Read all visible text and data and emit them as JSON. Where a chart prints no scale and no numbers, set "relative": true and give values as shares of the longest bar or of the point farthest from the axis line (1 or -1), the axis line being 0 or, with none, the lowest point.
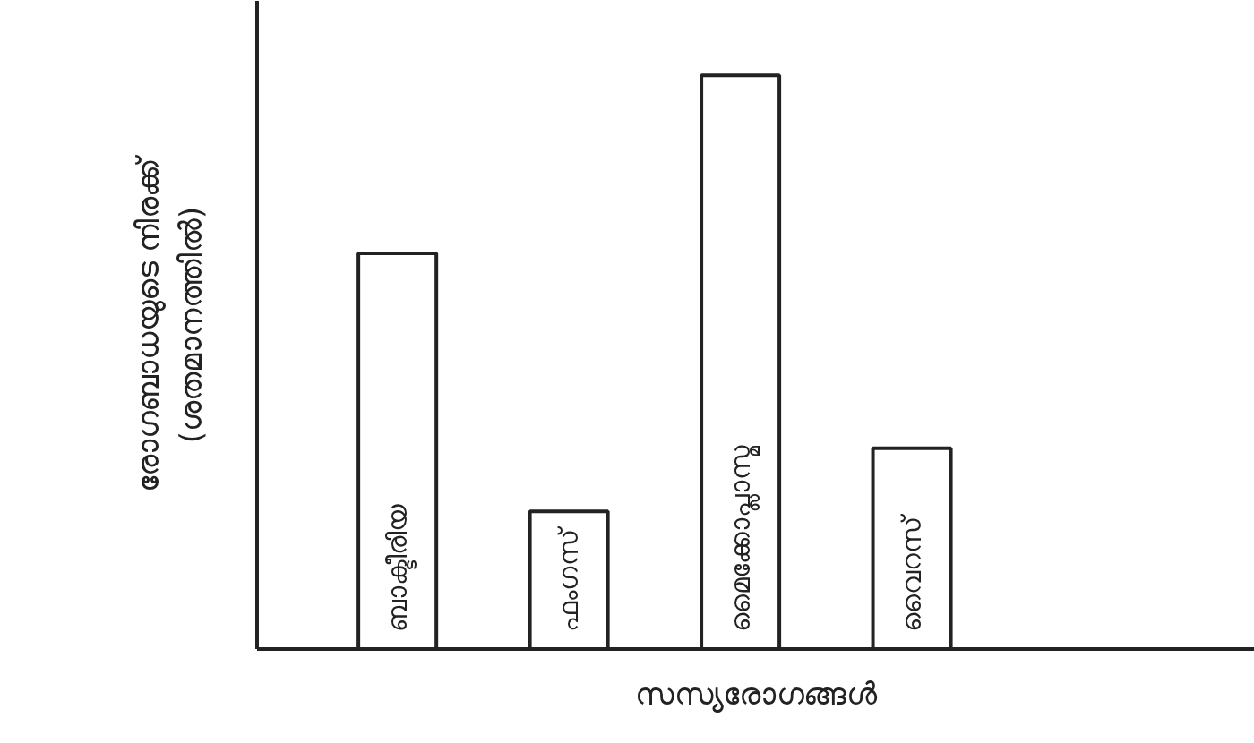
{
  "chart_data": {
    "type": "bar",
    "relative": true,
    "xlabel": "സസ്യരോഗങ്ങൾ",
    "ylabel": "രോഗബാധയുടെ നിരക്ക്\n(ശതമാനത്തിൽ)",
    "categories": [
      "ബാക്ടീരിയ",
      "ഫംഗസ്",
      "മൈക്കോപ്ലാസ്മ",
      "വൈറസ്"
    ],
    "values": [
      0.69,
      0.24,
      1,
      0.35
    ],
    "color": "#ffffff",
    "grid": false
  }
}
